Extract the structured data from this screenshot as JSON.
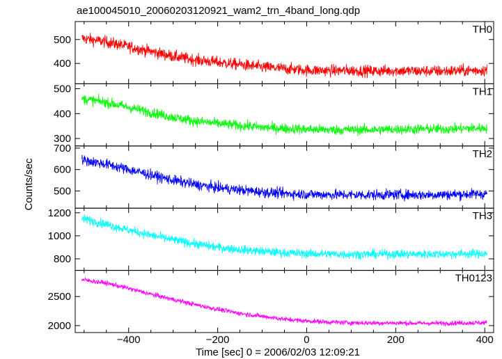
{
  "chart_data": {
    "type": "line",
    "title": "ae100045010_20060203120921_wam2_trn_4band_long.qdp",
    "xlabel": "Time [sec] 0 = 2006/02/03 12:09:21",
    "ylabel": "Counts/sec",
    "xlim": [
      -520,
      420
    ],
    "x_ticks": [
      -400,
      -200,
      0,
      200,
      400
    ],
    "x_tick_labels": [
      "−400",
      "−200",
      "0",
      "200",
      "400"
    ],
    "x_data_range": [
      -505,
      405
    ],
    "grid": false,
    "panels": [
      {
        "name": "TH0",
        "color": "#ff0000",
        "ylim": [
          315,
          575
        ],
        "y_ticks": [
          400,
          500
        ],
        "y_tick_labels": [
          "400",
          "500"
        ],
        "trend": {
          "x": [
            -505,
            -450,
            -400,
            -350,
            -300,
            -250,
            -200,
            -150,
            -100,
            -50,
            0,
            50,
            100,
            150,
            200,
            250,
            300,
            350,
            405
          ],
          "y": [
            505,
            490,
            470,
            450,
            430,
            415,
            405,
            395,
            385,
            378,
            372,
            370,
            370,
            368,
            370,
            368,
            368,
            370,
            372
          ]
        },
        "noise": 24
      },
      {
        "name": "TH1",
        "color": "#00ff00",
        "ylim": [
          270,
          520
        ],
        "y_ticks": [
          300,
          400,
          500
        ],
        "y_tick_labels": [
          "300",
          "400",
          "500"
        ],
        "trend": {
          "x": [
            -505,
            -450,
            -400,
            -350,
            -300,
            -250,
            -200,
            -150,
            -100,
            -50,
            0,
            50,
            100,
            150,
            200,
            250,
            300,
            350,
            405
          ],
          "y": [
            460,
            445,
            425,
            405,
            385,
            370,
            360,
            352,
            345,
            340,
            337,
            335,
            335,
            335,
            337,
            338,
            338,
            340,
            342
          ]
        },
        "noise": 20
      },
      {
        "name": "TH2",
        "color": "#0000ff",
        "ylim": [
          420,
          710
        ],
        "y_ticks": [
          500,
          600,
          700
        ],
        "y_tick_labels": [
          "500",
          "600",
          "700"
        ],
        "trend": {
          "x": [
            -505,
            -450,
            -400,
            -350,
            -300,
            -250,
            -200,
            -150,
            -100,
            -50,
            0,
            50,
            100,
            150,
            200,
            250,
            300,
            350,
            405
          ],
          "y": [
            645,
            625,
            600,
            575,
            550,
            530,
            515,
            505,
            495,
            488,
            485,
            483,
            482,
            482,
            483,
            482,
            483,
            485,
            487
          ]
        },
        "noise": 24
      },
      {
        "name": "TH3",
        "color": "#00ffff",
        "ylim": [
          700,
          1240
        ],
        "y_ticks": [
          800,
          1000,
          1200
        ],
        "y_tick_labels": [
          "800",
          "1000",
          "1200"
        ],
        "trend": {
          "x": [
            -505,
            -450,
            -400,
            -350,
            -300,
            -250,
            -200,
            -150,
            -100,
            -50,
            0,
            50,
            100,
            150,
            200,
            250,
            300,
            350,
            405
          ],
          "y": [
            1150,
            1100,
            1050,
            1005,
            965,
            930,
            900,
            880,
            865,
            852,
            845,
            842,
            840,
            840,
            842,
            841,
            842,
            843,
            845
          ]
        },
        "noise": 38
      },
      {
        "name": "TH0123",
        "color": "#ff00ff",
        "ylim": [
          1880,
          2950
        ],
        "y_ticks": [
          2000,
          2500
        ],
        "y_tick_labels": [
          "2000",
          "2500"
        ],
        "trend": {
          "x": [
            -505,
            -450,
            -400,
            -350,
            -300,
            -250,
            -200,
            -150,
            -100,
            -50,
            0,
            50,
            100,
            150,
            200,
            250,
            300,
            350,
            405
          ],
          "y": [
            2790,
            2730,
            2640,
            2540,
            2450,
            2360,
            2280,
            2210,
            2160,
            2110,
            2080,
            2060,
            2050,
            2045,
            2045,
            2040,
            2040,
            2045,
            2050
          ]
        },
        "noise": 40
      }
    ]
  }
}
